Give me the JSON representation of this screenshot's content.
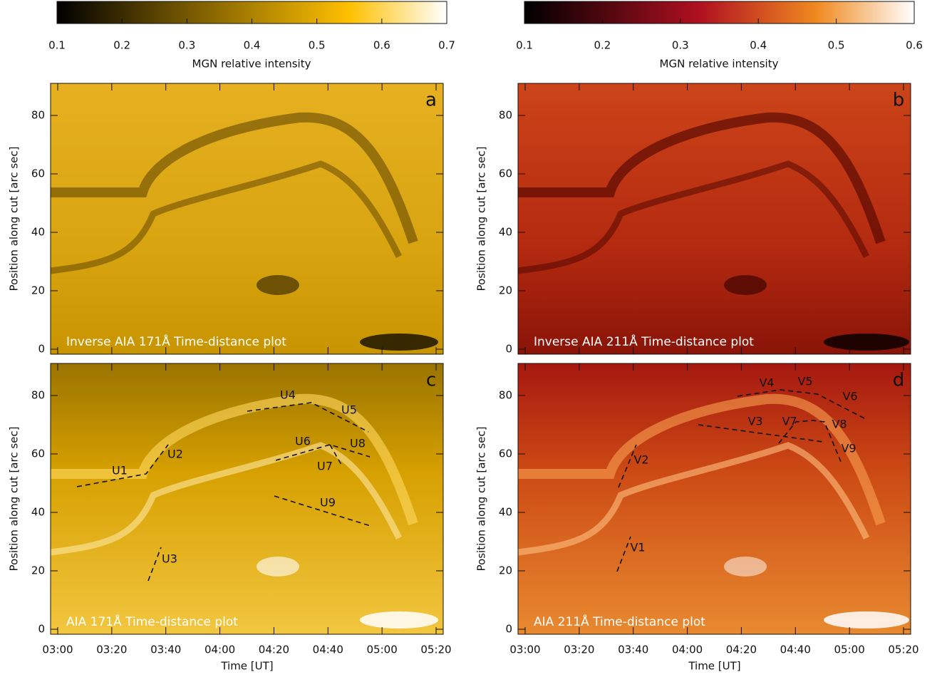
{
  "colorbars": [
    {
      "ticks": [
        "0.1",
        "0.2",
        "0.3",
        "0.4",
        "0.5",
        "0.6",
        "0.7"
      ],
      "label": "MGN relative intensity"
    },
    {
      "ticks": [
        "0.1",
        "0.2",
        "0.3",
        "0.4",
        "0.5",
        "0.6"
      ],
      "label": "MGN relative intensity"
    }
  ],
  "panels": [
    {
      "letter": "a",
      "caption": "Inverse AIA 171Å Time-distance plot",
      "annotations": []
    },
    {
      "letter": "b",
      "caption": "Inverse AIA 211Å Time-distance plot",
      "annotations": []
    },
    {
      "letter": "c",
      "caption": "AIA 171Å Time-distance plot",
      "annotations": [
        "U1",
        "U2",
        "U3",
        "U4",
        "U5",
        "U6",
        "U7",
        "U8",
        "U9"
      ]
    },
    {
      "letter": "d",
      "caption": "AIA 211Å Time-distance plot",
      "annotations": [
        "V1",
        "V2",
        "V3",
        "V4",
        "V5",
        "V6",
        "V7",
        "V8",
        "V9"
      ]
    }
  ],
  "y_axis": {
    "label": "Position along cut [arc sec]",
    "ticks": [
      "0",
      "20",
      "40",
      "60",
      "80"
    ]
  },
  "x_axis": {
    "label": "Time [UT]",
    "ticks": [
      "03:00",
      "03:20",
      "03:40",
      "04:00",
      "04:20",
      "04:40",
      "05:00",
      "05:20"
    ]
  }
}
